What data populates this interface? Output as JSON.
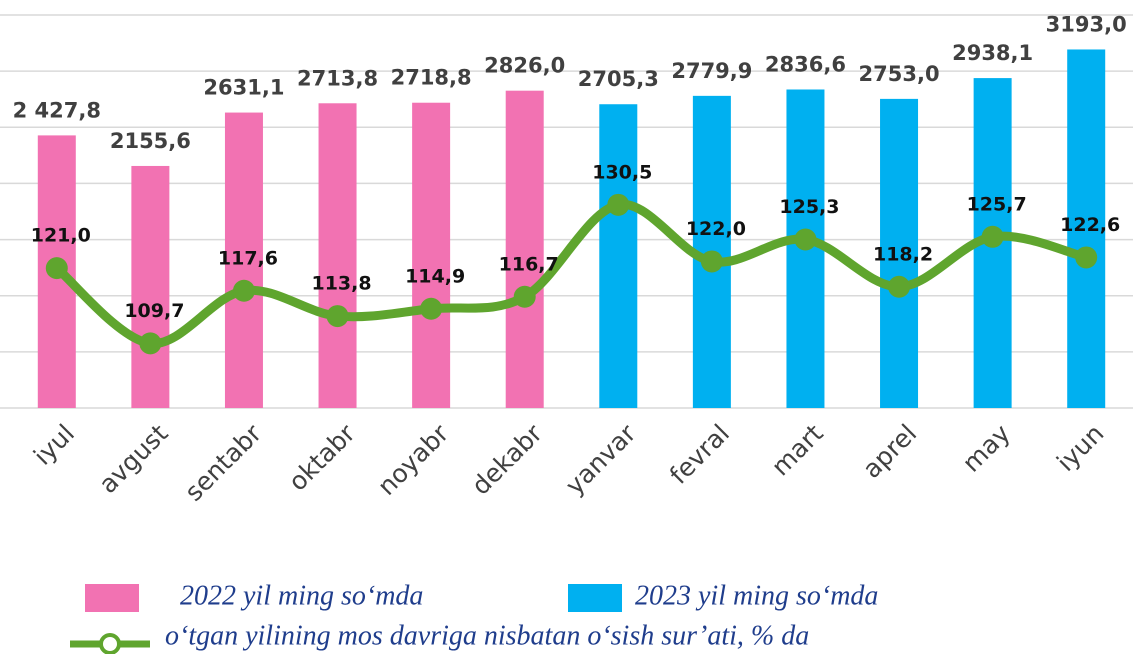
{
  "chart_data": {
    "type": "bar",
    "categories": [
      "iyul",
      "avgust",
      "sentabr",
      "oktabr",
      "noyabr",
      "dekabr",
      "yanvar",
      "fevral",
      "mart",
      "aprel",
      "may",
      "iyun"
    ],
    "series": [
      {
        "name": "2022 yil ming so‘mda",
        "color": "#f272b2",
        "values": [
          2427.8,
          2155.6,
          2631.1,
          2713.8,
          2718.8,
          2826.0,
          null,
          null,
          null,
          null,
          null,
          null
        ],
        "value_labels": [
          "2 427,8",
          "2155,6",
          "2631,1",
          "2713,8",
          "2718,8",
          "2826,0",
          null,
          null,
          null,
          null,
          null,
          null
        ]
      },
      {
        "name": "2023 yil ming so‘mda",
        "color": "#00b0f0",
        "values": [
          null,
          null,
          null,
          null,
          null,
          null,
          2705.3,
          2779.9,
          2836.6,
          2753.0,
          2938.1,
          3193.0
        ],
        "value_labels": [
          null,
          null,
          null,
          null,
          null,
          null,
          "2705,3",
          "2779,9",
          "2836,6",
          "2753,0",
          "2938,1",
          "3193,0"
        ]
      },
      {
        "name": "o‘tgan yilining mos davriga nisbatan o‘sish sur’ati, % da",
        "type": "line",
        "axis": "y2",
        "color": "#5fa52e",
        "values": [
          121.0,
          109.7,
          117.6,
          113.8,
          114.9,
          116.7,
          130.5,
          122.0,
          125.3,
          118.2,
          125.7,
          122.6
        ],
        "value_labels": [
          "121,0",
          "109,7",
          "117,6",
          "113,8",
          "114,9",
          "116,7",
          "130,5",
          "122,0",
          "125,3",
          "118,2",
          "125,7",
          "122,6"
        ]
      }
    ],
    "ylim": [
      0,
      3500
    ],
    "yticks": [
      0,
      500,
      1000,
      1500,
      2000,
      2500,
      3000,
      3500
    ],
    "y2lim": [
      100,
      159
    ],
    "grid": true
  }
}
